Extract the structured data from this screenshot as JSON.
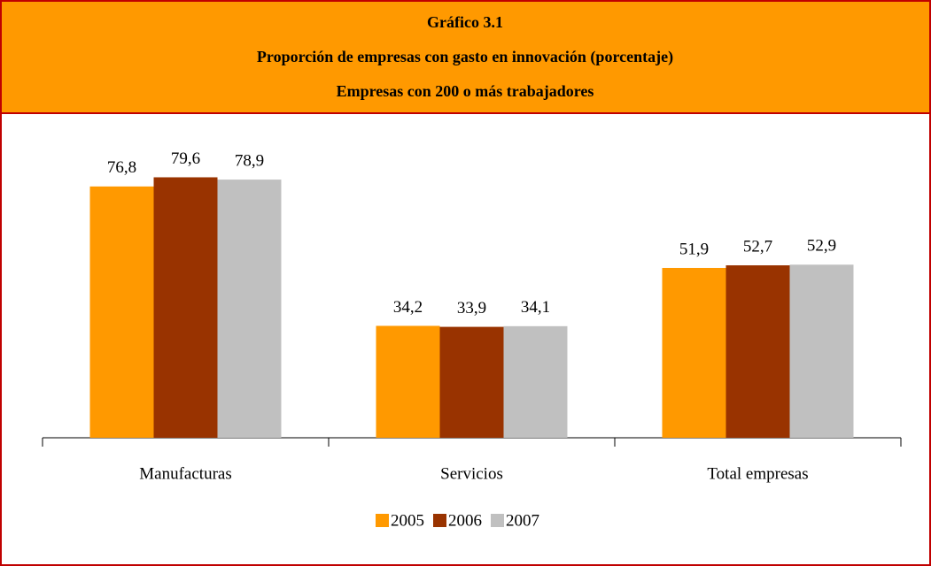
{
  "chart_data": {
    "type": "bar",
    "title_lines": [
      "Gráfico 3.1",
      "Proporción de empresas con gasto en innovación (porcentaje)",
      "Empresas con 200 o más trabajadores"
    ],
    "categories": [
      "Manufacturas",
      "Servicios",
      "Total empresas"
    ],
    "series": [
      {
        "name": "2005",
        "color": "#ff9900",
        "values": [
          76.8,
          34.2,
          51.9
        ],
        "value_labels": [
          "76,8",
          "34,2",
          "51,9"
        ]
      },
      {
        "name": "2006",
        "color": "#993300",
        "values": [
          79.6,
          33.9,
          52.7
        ],
        "value_labels": [
          "79,6",
          "33,9",
          "52,7"
        ]
      },
      {
        "name": "2007",
        "color": "#c0c0c0",
        "values": [
          78.9,
          34.1,
          52.9
        ],
        "value_labels": [
          "78,9",
          "34,1",
          "52,9"
        ]
      }
    ],
    "ylim": [
      0,
      100
    ],
    "legend": "bottom"
  }
}
